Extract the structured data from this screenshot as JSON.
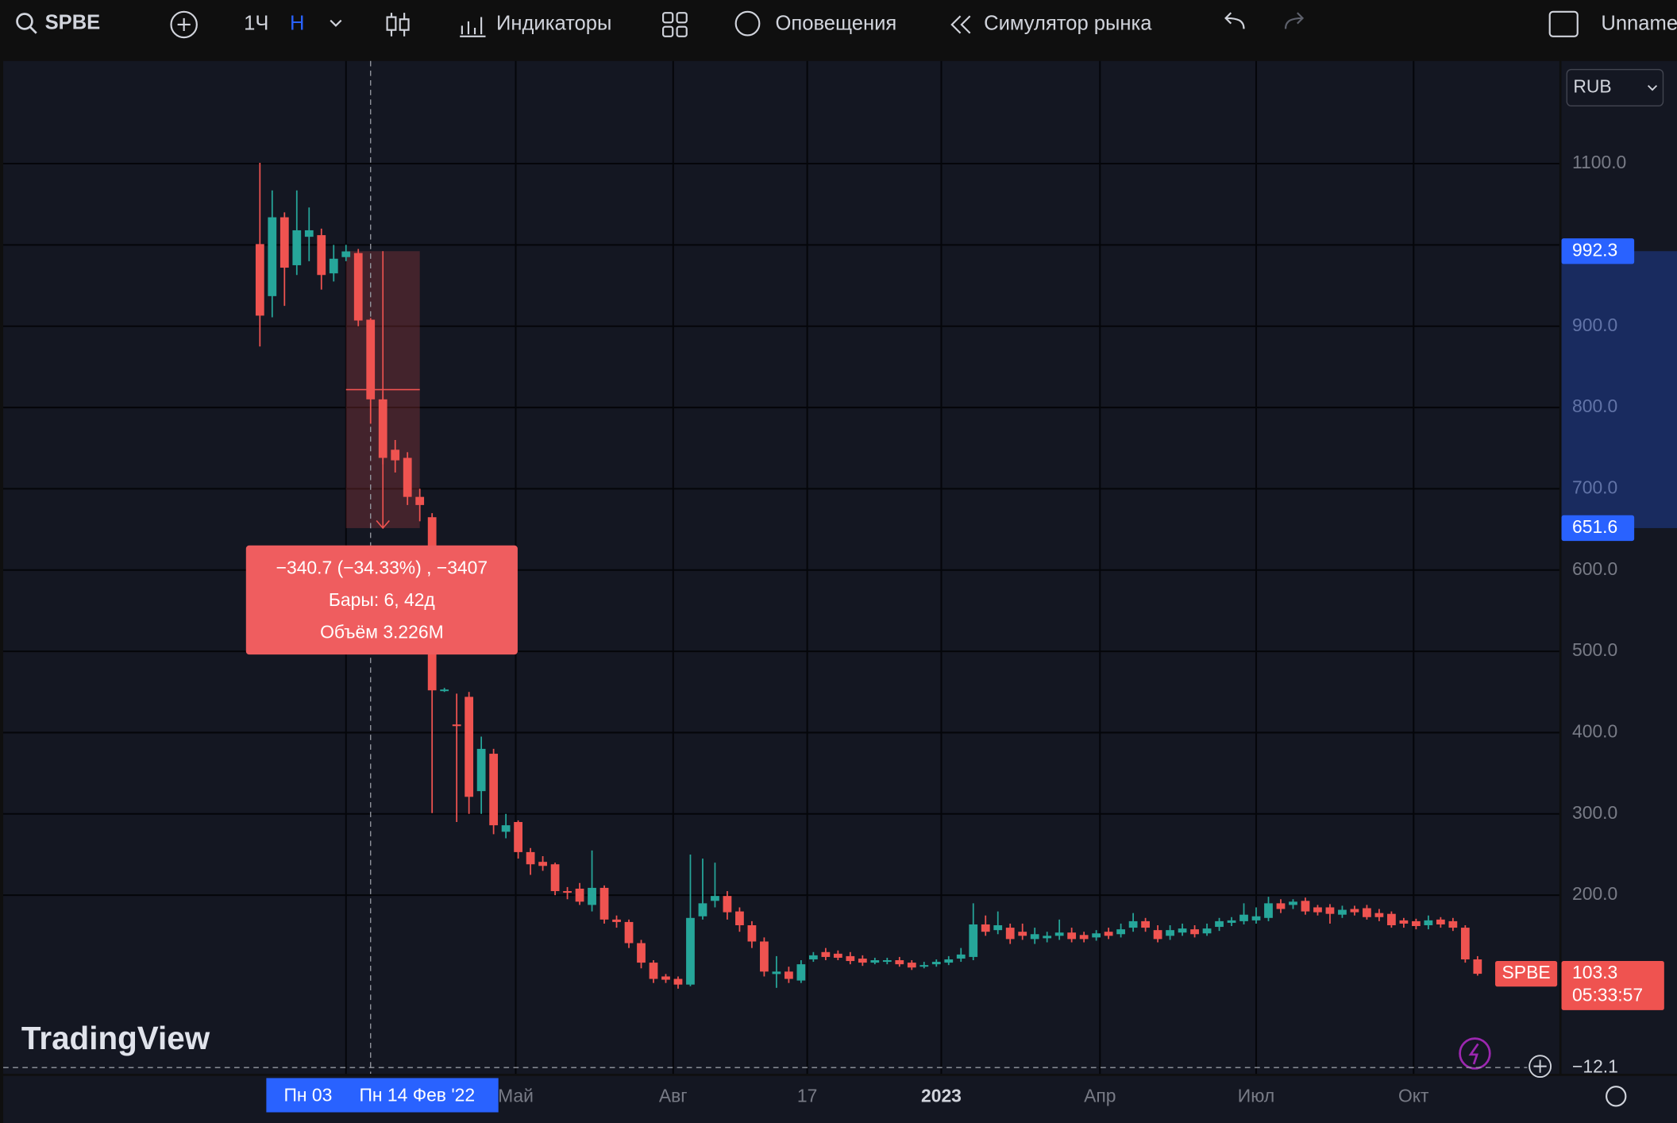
{
  "toolbar": {
    "symbol": "SPBE",
    "interval": "1Ч",
    "interval_alt": "Н",
    "indicators": "Индикаторы",
    "alerts": "Оповещения",
    "replay": "Симулятор рынка",
    "layout": "Unnamed"
  },
  "chart_data": {
    "type": "candlestick",
    "currency": "RUB",
    "watermark": "TradingView",
    "colors": {
      "up": "#26a69a",
      "down": "#ef5350"
    },
    "open": [
      1001,
      937,
      1034,
      975,
      1010,
      1012,
      965,
      985,
      990,
      908,
      810,
      748,
      738,
      690,
      665,
      452,
      410,
      444,
      328,
      374,
      278,
      290,
      253,
      241,
      238,
      205,
      208,
      188,
      209,
      170,
      167,
      141,
      117,
      100,
      97,
      90,
      174,
      193,
      199,
      180,
      163,
      143,
      103,
      106,
      95,
      121,
      130,
      128,
      125,
      122,
      117,
      118,
      120,
      117,
      112,
      115,
      117,
      122,
      124,
      164,
      157,
      160,
      155,
      146,
      147,
      150,
      154,
      151,
      148,
      155,
      152,
      160,
      168,
      157,
      150,
      154,
      158,
      153,
      161,
      166,
      168,
      169,
      172,
      190,
      188,
      193,
      185,
      185,
      176,
      183,
      184,
      178,
      177,
      169,
      168,
      163,
      170,
      168,
      160,
      121
    ],
    "high": [
      1101,
      1067,
      1040,
      1067,
      1046,
      1020,
      1000,
      1000,
      995,
      910,
      820,
      760,
      745,
      700,
      670,
      455,
      448,
      450,
      395,
      380,
      300,
      292,
      258,
      248,
      240,
      210,
      215,
      255,
      212,
      175,
      170,
      145,
      120,
      103,
      100,
      250,
      245,
      240,
      205,
      185,
      168,
      148,
      125,
      112,
      120,
      130,
      135,
      132,
      130,
      126,
      123,
      123,
      124,
      120,
      118,
      121,
      125,
      135,
      190,
      175,
      180,
      165,
      165,
      160,
      155,
      170,
      160,
      155,
      157,
      160,
      165,
      178,
      172,
      163,
      163,
      165,
      163,
      165,
      172,
      173,
      190,
      185,
      198,
      195,
      195,
      197,
      188,
      189,
      187,
      187,
      188,
      183,
      180,
      172,
      171,
      175,
      173,
      172,
      163,
      125
    ],
    "low": [
      875,
      911,
      925,
      963,
      980,
      945,
      955,
      980,
      900,
      780,
      730,
      720,
      680,
      660,
      301,
      450,
      290,
      300,
      300,
      275,
      270,
      245,
      225,
      230,
      200,
      195,
      188,
      180,
      165,
      160,
      135,
      110,
      92,
      92,
      85,
      88,
      170,
      185,
      170,
      155,
      135,
      100,
      86,
      92,
      92,
      118,
      120,
      120,
      115,
      113,
      115,
      115,
      112,
      108,
      110,
      112,
      114,
      118,
      120,
      150,
      152,
      140,
      145,
      140,
      142,
      145,
      142,
      142,
      144,
      146,
      148,
      155,
      155,
      142,
      145,
      150,
      148,
      150,
      156,
      162,
      164,
      165,
      168,
      178,
      183,
      176,
      175,
      165,
      172,
      175,
      170,
      168,
      160,
      160,
      158,
      158,
      160,
      156,
      117,
      101
    ],
    "close": [
      913,
      1034,
      972,
      1018,
      1018,
      963,
      983,
      992,
      907,
      810,
      738,
      735,
      690,
      680,
      452,
      453,
      408,
      321,
      380,
      286,
      286,
      253,
      238,
      236,
      205,
      203,
      192,
      209,
      170,
      167,
      141,
      117,
      97,
      96,
      90,
      172,
      190,
      199,
      179,
      163,
      143,
      106,
      106,
      97,
      115,
      126,
      124,
      123,
      119,
      117,
      120,
      120,
      115,
      111,
      114,
      118,
      121,
      127,
      164,
      155,
      163,
      146,
      150,
      152,
      150,
      154,
      146,
      146,
      153,
      150,
      158,
      168,
      160,
      146,
      157,
      159,
      152,
      159,
      168,
      169,
      176,
      174,
      190,
      183,
      192,
      180,
      179,
      177,
      182,
      179,
      173,
      173,
      163,
      165,
      162,
      169,
      164,
      160,
      121,
      103.3
    ],
    "xlim": [
      -20.87,
      105.65
    ],
    "xticks": [
      {
        "value": 7,
        "label": null
      },
      {
        "value": 20.8,
        "label": "Май"
      },
      {
        "value": 33.6,
        "label": "Авг"
      },
      {
        "value": 44.5,
        "label": "17"
      },
      {
        "value": 55.4,
        "label": "2023"
      },
      {
        "value": 68.3,
        "label": "Апр"
      },
      {
        "value": 81,
        "label": "Июл"
      },
      {
        "value": 93.8,
        "label": "Окт"
      }
    ],
    "ylim": [
      -14.5,
      1226.3
    ],
    "yticks": [
      {
        "value": 200,
        "label": "200.0"
      },
      {
        "value": 300,
        "label": "300.0"
      },
      {
        "value": 400,
        "label": "400.0"
      },
      {
        "value": 500,
        "label": "500.0"
      },
      {
        "value": 600,
        "label": "600.0"
      },
      {
        "value": 700,
        "label": "700.0"
      },
      {
        "value": 800,
        "label": "800.0"
      },
      {
        "value": 900,
        "label": "900.0"
      },
      {
        "value": 1000,
        "label": null
      },
      {
        "value": 1100,
        "label": "1100.0"
      }
    ],
    "measure": {
      "from": 992.3,
      "to": 651.6,
      "x_range": [
        7,
        13
      ],
      "lines": [
        "−340.7 (−34.33%) , −3407",
        "Бары: 6, 42д",
        "Объём 3.226M"
      ]
    },
    "last": {
      "symbol": "SPBE",
      "value": 103.3,
      "countdown": "05:33:57"
    },
    "crosshair": {
      "x": 9,
      "x_label": "Пн 14 Фев '22",
      "start_label": "Пн 03",
      "y": {
        "value": -12.1,
        "label": "−12.1"
      }
    }
  }
}
